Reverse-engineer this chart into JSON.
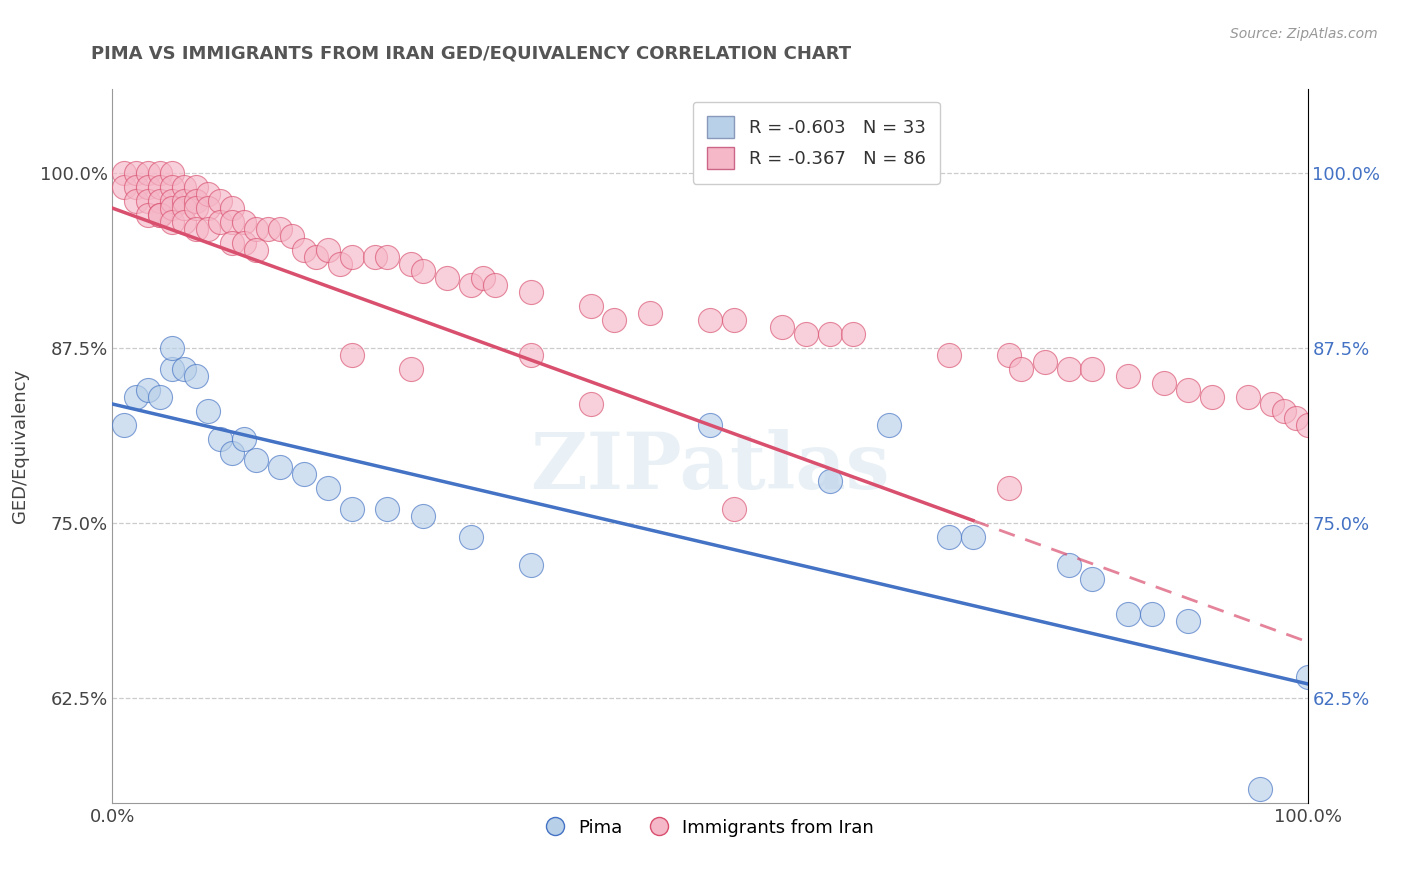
{
  "title": "PIMA VS IMMIGRANTS FROM IRAN GED/EQUIVALENCY CORRELATION CHART",
  "source_text": "Source: ZipAtlas.com",
  "ylabel": "GED/Equivalency",
  "xlim": [
    0.0,
    1.0
  ],
  "ylim": [
    0.55,
    1.06
  ],
  "yticks": [
    0.625,
    0.75,
    0.875,
    1.0
  ],
  "ytick_labels": [
    "62.5%",
    "75.0%",
    "87.5%",
    "100.0%"
  ],
  "xticks": [
    0.0,
    1.0
  ],
  "xtick_labels": [
    "0.0%",
    "100.0%"
  ],
  "legend_r_blue": "-0.603",
  "legend_n_blue": "33",
  "legend_r_pink": "-0.367",
  "legend_n_pink": "86",
  "blue_color": "#b8d0e8",
  "pink_color": "#f5b8c8",
  "trend_blue": "#4472c4",
  "trend_pink": "#d94f6e",
  "watermark": "ZIPatlas",
  "background_color": "#ffffff",
  "blue_x": [
    0.01,
    0.02,
    0.03,
    0.04,
    0.05,
    0.05,
    0.06,
    0.07,
    0.08,
    0.09,
    0.1,
    0.11,
    0.12,
    0.14,
    0.16,
    0.18,
    0.2,
    0.23,
    0.26,
    0.3,
    0.35,
    0.5,
    0.6,
    0.65,
    0.7,
    0.72,
    0.8,
    0.82,
    0.85,
    0.87,
    0.9,
    0.96,
    1.0
  ],
  "blue_y": [
    0.82,
    0.84,
    0.845,
    0.84,
    0.86,
    0.875,
    0.86,
    0.855,
    0.83,
    0.81,
    0.8,
    0.81,
    0.795,
    0.79,
    0.785,
    0.775,
    0.76,
    0.76,
    0.755,
    0.74,
    0.72,
    0.82,
    0.78,
    0.82,
    0.74,
    0.74,
    0.72,
    0.71,
    0.685,
    0.685,
    0.68,
    0.56,
    0.64
  ],
  "pink_x": [
    0.01,
    0.01,
    0.02,
    0.02,
    0.02,
    0.03,
    0.03,
    0.03,
    0.03,
    0.04,
    0.04,
    0.04,
    0.04,
    0.04,
    0.05,
    0.05,
    0.05,
    0.05,
    0.05,
    0.06,
    0.06,
    0.06,
    0.06,
    0.07,
    0.07,
    0.07,
    0.07,
    0.08,
    0.08,
    0.08,
    0.09,
    0.09,
    0.1,
    0.1,
    0.1,
    0.11,
    0.11,
    0.12,
    0.12,
    0.13,
    0.14,
    0.15,
    0.16,
    0.17,
    0.18,
    0.19,
    0.2,
    0.22,
    0.23,
    0.25,
    0.26,
    0.28,
    0.3,
    0.31,
    0.32,
    0.35,
    0.4,
    0.42,
    0.45,
    0.5,
    0.52,
    0.56,
    0.58,
    0.6,
    0.62,
    0.7,
    0.75,
    0.76,
    0.78,
    0.8,
    0.82,
    0.85,
    0.88,
    0.9,
    0.92,
    0.95,
    0.97,
    0.98,
    0.99,
    1.0,
    0.35,
    0.75,
    0.4,
    0.52,
    0.2,
    0.25
  ],
  "pink_y": [
    1.0,
    0.99,
    1.0,
    0.99,
    0.98,
    1.0,
    0.99,
    0.98,
    0.97,
    1.0,
    0.99,
    0.98,
    0.97,
    0.97,
    1.0,
    0.99,
    0.98,
    0.975,
    0.965,
    0.99,
    0.98,
    0.975,
    0.965,
    0.99,
    0.98,
    0.975,
    0.96,
    0.985,
    0.975,
    0.96,
    0.98,
    0.965,
    0.975,
    0.965,
    0.95,
    0.965,
    0.95,
    0.96,
    0.945,
    0.96,
    0.96,
    0.955,
    0.945,
    0.94,
    0.945,
    0.935,
    0.94,
    0.94,
    0.94,
    0.935,
    0.93,
    0.925,
    0.92,
    0.925,
    0.92,
    0.915,
    0.905,
    0.895,
    0.9,
    0.895,
    0.895,
    0.89,
    0.885,
    0.885,
    0.885,
    0.87,
    0.87,
    0.86,
    0.865,
    0.86,
    0.86,
    0.855,
    0.85,
    0.845,
    0.84,
    0.84,
    0.835,
    0.83,
    0.825,
    0.82,
    0.87,
    0.775,
    0.835,
    0.76,
    0.87,
    0.86
  ]
}
